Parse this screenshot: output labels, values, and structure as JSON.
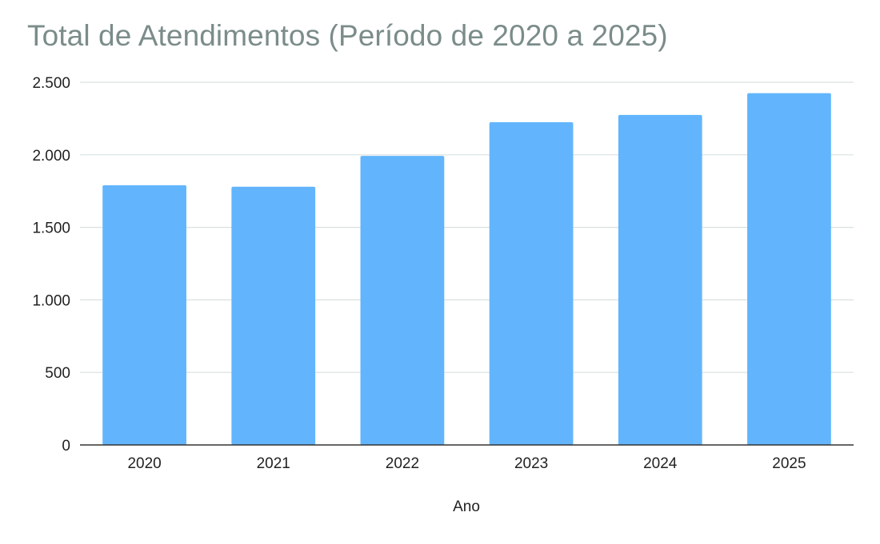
{
  "chart_data": {
    "type": "bar",
    "title": "Total de Atendimentos (Período de 2020 a 2025)",
    "xlabel": "Ano",
    "ylabel": "",
    "categories": [
      "2020",
      "2021",
      "2022",
      "2023",
      "2024",
      "2025"
    ],
    "values": [
      1790,
      1780,
      1993,
      2225,
      2275,
      2425
    ],
    "ylim": [
      0,
      2500
    ],
    "yticks": [
      0,
      500,
      1000,
      1500,
      2000,
      2500
    ],
    "ytick_labels": [
      "0",
      "500",
      "1.000",
      "1.500",
      "2.000",
      "2.500"
    ],
    "grid": true,
    "legend": "none",
    "colors": {
      "bar": "#62b5fc",
      "grid": "#d9e1e0",
      "axis": "#333333",
      "title": "#7b8c8a",
      "text": "#222222"
    }
  }
}
